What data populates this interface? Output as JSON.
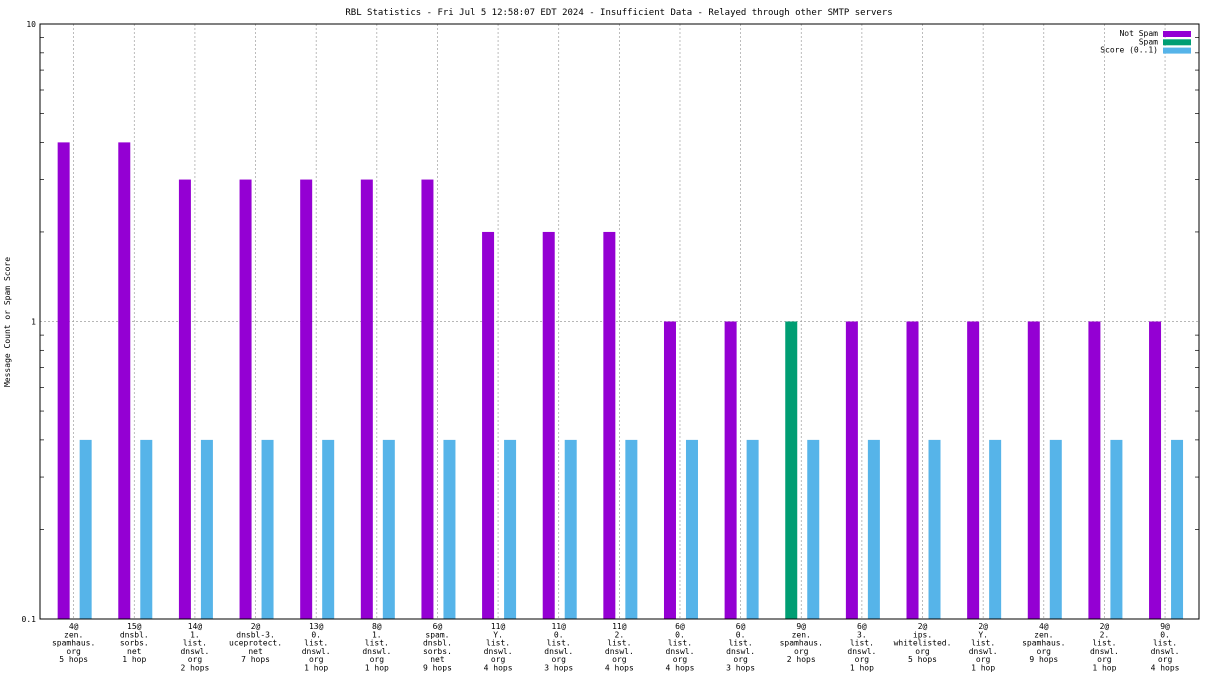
{
  "chart_data": {
    "type": "bar",
    "title": "RBL Statistics - Fri Jul  5 12:58:07 EDT 2024 - Insufficient Data - Relayed through other SMTP servers",
    "xlabel": "",
    "ylabel": "Message Count or Spam Score",
    "yscale": "log",
    "ylim": [
      0.1,
      10
    ],
    "yticks": [
      {
        "value": 0.1,
        "label": "0.1"
      },
      {
        "value": 1,
        "label": "1"
      },
      {
        "value": 10,
        "label": "10"
      }
    ],
    "grid": true,
    "legend_position": "top-right",
    "categories": [
      [
        "4@",
        "zen.",
        "spamhaus.",
        "org",
        "5 hops"
      ],
      [
        "15@",
        "dnsbl.",
        "sorbs.",
        "net",
        "1 hop"
      ],
      [
        "14@",
        "1.",
        "list.",
        "dnswl.",
        "org",
        "2 hops"
      ],
      [
        "2@",
        "dnsbl-3.",
        "uceprotect.",
        "net",
        "7 hops"
      ],
      [
        "13@",
        "0.",
        "list.",
        "dnswl.",
        "org",
        "1 hop"
      ],
      [
        "8@",
        "1.",
        "list.",
        "dnswl.",
        "org",
        "1 hop"
      ],
      [
        "6@",
        "spam.",
        "dnsbl.",
        "sorbs.",
        "net",
        "9 hops"
      ],
      [
        "11@",
        "Y.",
        "list.",
        "dnswl.",
        "org",
        "4 hops"
      ],
      [
        "11@",
        "0.",
        "list.",
        "dnswl.",
        "org",
        "3 hops"
      ],
      [
        "11@",
        "2.",
        "list.",
        "dnswl.",
        "org",
        "4 hops"
      ],
      [
        "6@",
        "0.",
        "list.",
        "dnswl.",
        "org",
        "4 hops"
      ],
      [
        "6@",
        "0.",
        "list.",
        "dnswl.",
        "org",
        "3 hops"
      ],
      [
        "9@",
        "zen.",
        "spamhaus.",
        "org",
        "2 hops"
      ],
      [
        "6@",
        "3.",
        "list.",
        "dnswl.",
        "org",
        "1 hop"
      ],
      [
        "2@",
        "ips.",
        "whitelisted.",
        "org",
        "5 hops"
      ],
      [
        "2@",
        "Y.",
        "list.",
        "dnswl.",
        "org",
        "1 hop"
      ],
      [
        "4@",
        "zen.",
        "spamhaus.",
        "org",
        "9 hops"
      ],
      [
        "2@",
        "2.",
        "list.",
        "dnswl.",
        "org",
        "1 hop"
      ],
      [
        "9@",
        "0.",
        "list.",
        "dnswl.",
        "org",
        "4 hops"
      ]
    ],
    "series": [
      {
        "name": "Not Spam",
        "color": "#9400d3",
        "values": [
          4,
          4,
          3,
          3,
          3,
          3,
          3,
          2,
          2,
          2,
          1,
          1,
          null,
          1,
          1,
          1,
          1,
          1,
          1
        ]
      },
      {
        "name": "Spam",
        "color": "#009e73",
        "values": [
          null,
          null,
          null,
          null,
          null,
          null,
          null,
          null,
          null,
          null,
          null,
          null,
          1,
          null,
          null,
          null,
          null,
          null,
          null
        ]
      },
      {
        "name": "Score (0..1)",
        "color": "#56b4e9",
        "values": [
          0.4,
          0.4,
          0.4,
          0.4,
          0.4,
          0.4,
          0.4,
          0.4,
          0.4,
          0.4,
          0.4,
          0.4,
          0.4,
          0.4,
          0.4,
          0.4,
          0.4,
          0.4,
          0.4
        ]
      }
    ]
  }
}
